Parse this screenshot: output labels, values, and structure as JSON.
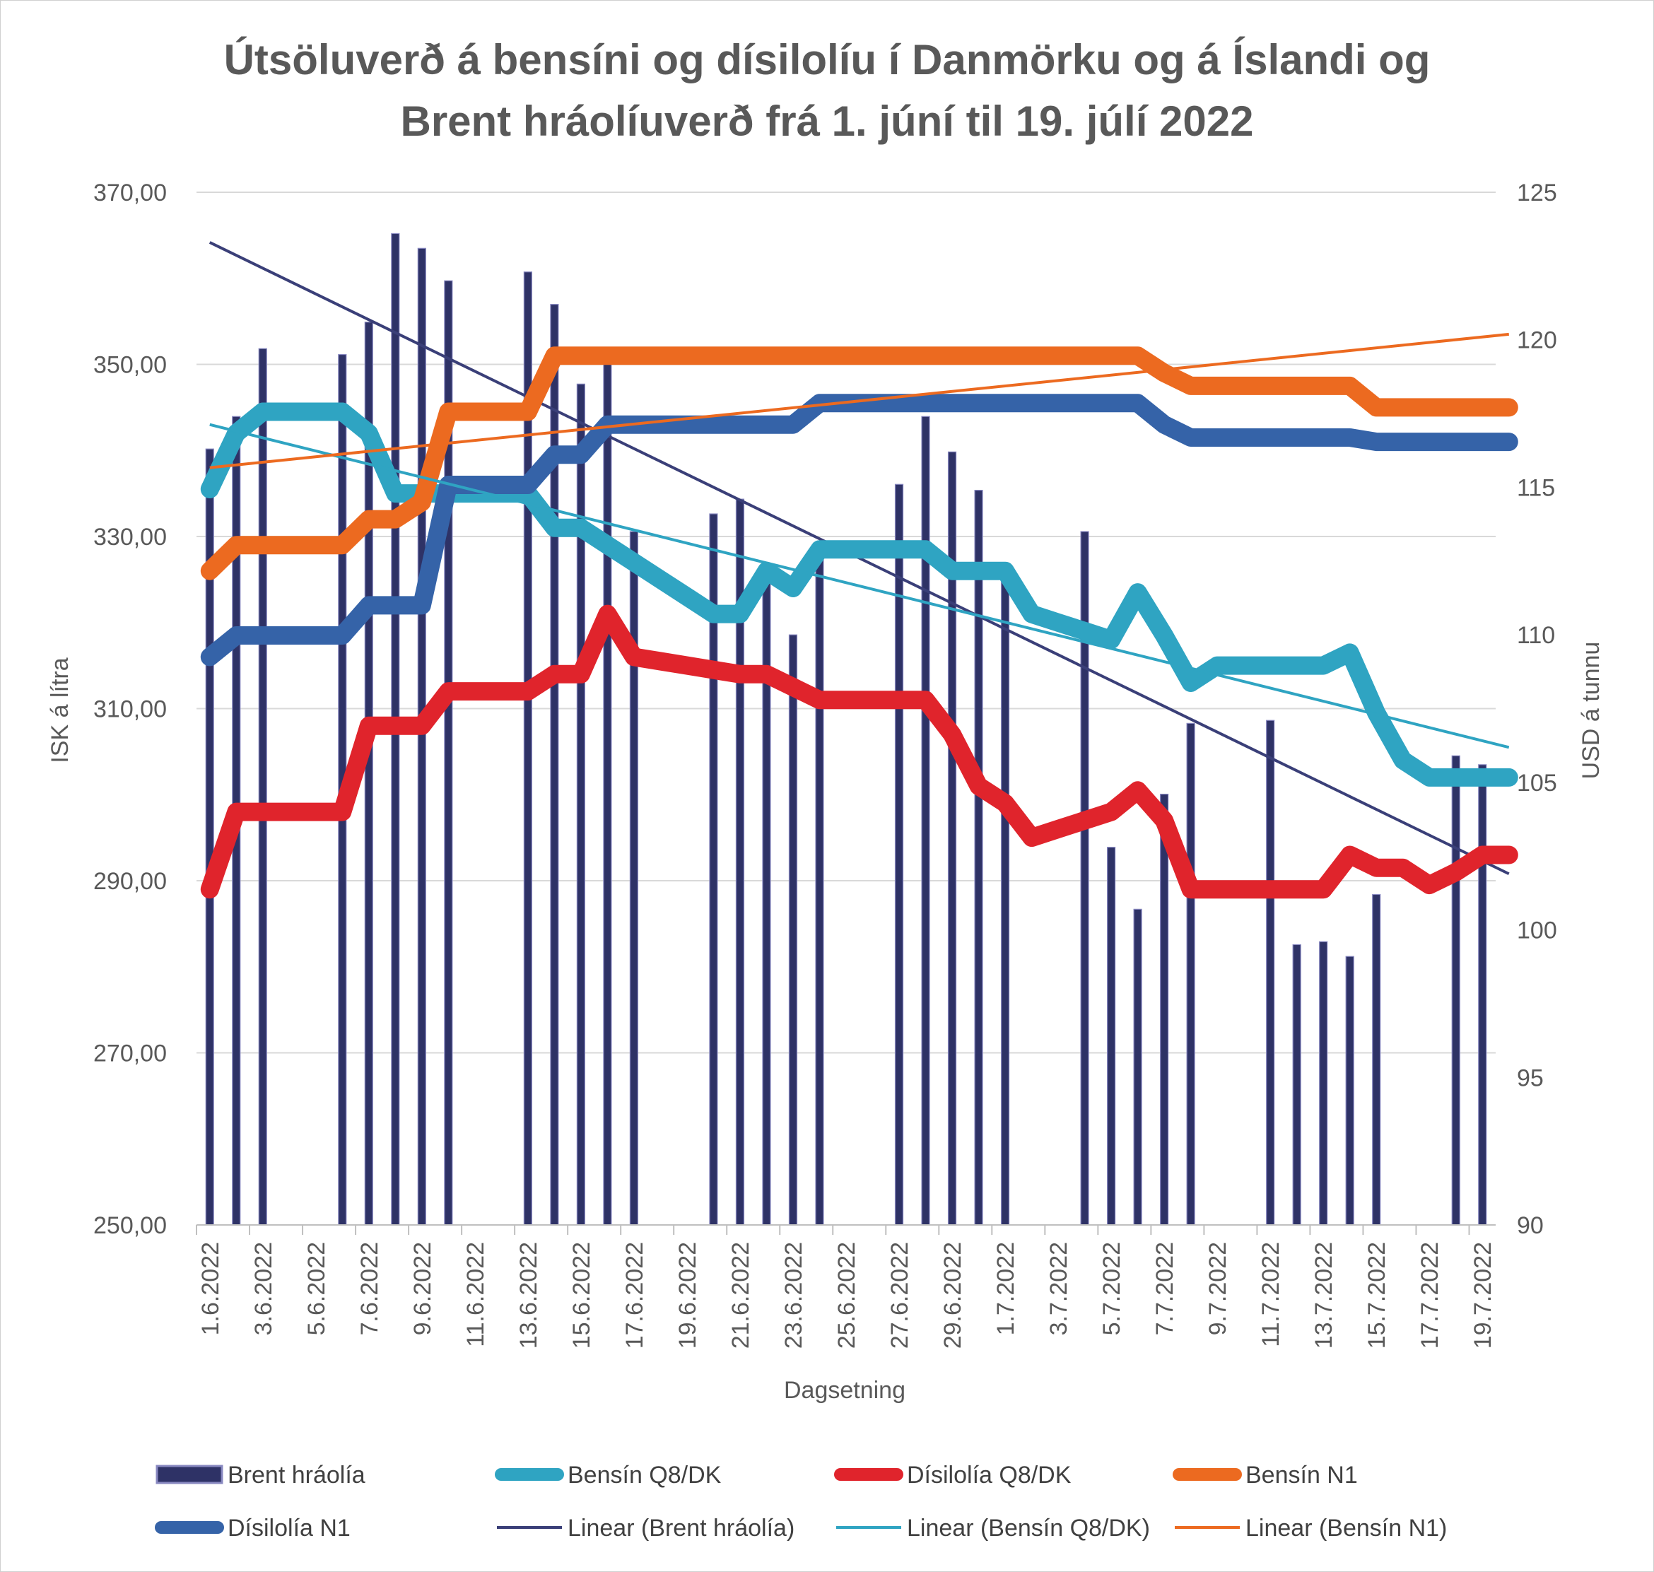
{
  "chart_data": {
    "type": "bar+line",
    "title": [
      "Útsöluverð á bensíni og dísilolíu í Danmörku og á Íslandi og",
      "Brent hráolíuverð frá 1. júní til 19. júlí 2022"
    ],
    "xlabel": "Dagsetning",
    "ylabel_left": "ISK á lítra",
    "ylabel_right": "USD á tunnu",
    "ylim_left": [
      250,
      370
    ],
    "ylim_right": [
      90,
      125
    ],
    "yticks_left": [
      "250,00",
      "270,00",
      "290,00",
      "310,00",
      "330,00",
      "350,00",
      "370,00"
    ],
    "yticks_right": [
      "90",
      "95",
      "100",
      "105",
      "110",
      "115",
      "120",
      "125"
    ],
    "grid": true,
    "legend_position": "bottom",
    "x_start": "2022-06-01",
    "days": 49,
    "xtick_labels": [
      "1.6.2022",
      "3.6.2022",
      "5.6.2022",
      "7.6.2022",
      "9.6.2022",
      "11.6.2022",
      "13.6.2022",
      "15.6.2022",
      "17.6.2022",
      "19.6.2022",
      "21.6.2022",
      "23.6.2022",
      "25.6.2022",
      "27.6.2022",
      "29.6.2022",
      "1.7.2022",
      "3.7.2022",
      "5.7.2022",
      "7.7.2022",
      "9.7.2022",
      "11.7.2022",
      "13.7.2022",
      "15.7.2022",
      "17.7.2022",
      "19.7.2022"
    ],
    "brent": {
      "name": "Brent hráolía",
      "color": "#2e3266",
      "days": [
        0,
        1,
        2,
        5,
        6,
        7,
        8,
        9,
        12,
        13,
        14,
        15,
        16,
        19,
        20,
        21,
        22,
        23,
        26,
        27,
        28,
        29,
        30,
        33,
        34,
        35,
        36,
        37,
        40,
        41,
        42,
        43,
        44,
        47,
        48
      ],
      "values": [
        116.3,
        117.4,
        119.7,
        119.5,
        120.6,
        123.6,
        123.1,
        122.0,
        122.3,
        121.2,
        118.5,
        119.4,
        113.5,
        114.1,
        114.6,
        112.0,
        110.0,
        113.0,
        115.1,
        117.4,
        116.2,
        114.9,
        112.3,
        113.5,
        102.8,
        100.7,
        104.6,
        107.0,
        107.1,
        99.5,
        99.6,
        99.1,
        101.2,
        105.9,
        105.6
      ]
    },
    "series": [
      {
        "name": "Bensín Q8/DK",
        "color": "#2fa4c2",
        "width": 26,
        "points": [
          [
            0,
            335.5
          ],
          [
            1,
            342
          ],
          [
            2,
            344.5
          ],
          [
            3,
            344.5
          ],
          [
            4,
            344.5
          ],
          [
            5,
            344.5
          ],
          [
            6,
            342
          ],
          [
            7,
            335
          ],
          [
            8,
            335
          ],
          [
            9,
            335
          ],
          [
            10,
            335
          ],
          [
            11,
            335
          ],
          [
            12,
            335
          ],
          [
            13,
            331
          ],
          [
            14,
            331
          ],
          [
            15,
            329
          ],
          [
            16,
            327
          ],
          [
            17,
            325
          ],
          [
            18,
            323
          ],
          [
            19,
            321
          ],
          [
            20,
            321
          ],
          [
            21,
            326
          ],
          [
            22,
            324
          ],
          [
            23,
            328.5
          ],
          [
            24,
            328.5
          ],
          [
            25,
            328.5
          ],
          [
            26,
            328.5
          ],
          [
            27,
            328.5
          ],
          [
            28,
            326
          ],
          [
            29,
            326
          ],
          [
            30,
            326
          ],
          [
            31,
            321
          ],
          [
            32,
            320
          ],
          [
            33,
            319
          ],
          [
            34,
            318
          ],
          [
            35,
            323.5
          ],
          [
            36,
            318.5
          ],
          [
            37,
            313
          ],
          [
            38,
            315
          ],
          [
            39,
            315
          ],
          [
            40,
            315
          ],
          [
            41,
            315
          ],
          [
            42,
            315
          ],
          [
            43,
            316.5
          ],
          [
            44,
            309.5
          ],
          [
            45,
            304
          ],
          [
            46,
            302
          ],
          [
            47,
            302
          ],
          [
            48,
            302
          ],
          [
            49,
            302
          ]
        ]
      },
      {
        "name": "Dísilolía Q8/DK",
        "color": "#e0242c",
        "width": 26,
        "points": [
          [
            0,
            289
          ],
          [
            1,
            298
          ],
          [
            2,
            298
          ],
          [
            3,
            298
          ],
          [
            4,
            298
          ],
          [
            5,
            298
          ],
          [
            6,
            308
          ],
          [
            7,
            308
          ],
          [
            8,
            308
          ],
          [
            9,
            312
          ],
          [
            10,
            312
          ],
          [
            11,
            312
          ],
          [
            12,
            312
          ],
          [
            13,
            314
          ],
          [
            14,
            314
          ],
          [
            15,
            321
          ],
          [
            16,
            316
          ],
          [
            17,
            315.5
          ],
          [
            18,
            315
          ],
          [
            19,
            314.5
          ],
          [
            20,
            314
          ],
          [
            21,
            314
          ],
          [
            22,
            312.5
          ],
          [
            23,
            311
          ],
          [
            24,
            311
          ],
          [
            25,
            311
          ],
          [
            26,
            311
          ],
          [
            27,
            311
          ],
          [
            28,
            307
          ],
          [
            29,
            301
          ],
          [
            30,
            299
          ],
          [
            31,
            295
          ],
          [
            32,
            296
          ],
          [
            33,
            297
          ],
          [
            34,
            298
          ],
          [
            35,
            300.5
          ],
          [
            36,
            297
          ],
          [
            37,
            289
          ],
          [
            38,
            289
          ],
          [
            39,
            289
          ],
          [
            40,
            289
          ],
          [
            41,
            289
          ],
          [
            42,
            289
          ],
          [
            43,
            293
          ],
          [
            44,
            291.5
          ],
          [
            45,
            291.5
          ],
          [
            46,
            289.5
          ],
          [
            47,
            291
          ],
          [
            48,
            293
          ],
          [
            49,
            293
          ]
        ]
      },
      {
        "name": "Bensín N1",
        "color": "#ec6a20",
        "width": 26,
        "points": [
          [
            0,
            326
          ],
          [
            1,
            329
          ],
          [
            2,
            329
          ],
          [
            3,
            329
          ],
          [
            4,
            329
          ],
          [
            5,
            329
          ],
          [
            6,
            332
          ],
          [
            7,
            332
          ],
          [
            8,
            334
          ],
          [
            9,
            344.5
          ],
          [
            10,
            344.5
          ],
          [
            11,
            344.5
          ],
          [
            12,
            344.5
          ],
          [
            13,
            351
          ],
          [
            14,
            351
          ],
          [
            15,
            351
          ],
          [
            16,
            351
          ],
          [
            17,
            351
          ],
          [
            18,
            351
          ],
          [
            19,
            351
          ],
          [
            20,
            351
          ],
          [
            21,
            351
          ],
          [
            22,
            351
          ],
          [
            23,
            351
          ],
          [
            24,
            351
          ],
          [
            25,
            351
          ],
          [
            26,
            351
          ],
          [
            27,
            351
          ],
          [
            28,
            351
          ],
          [
            29,
            351
          ],
          [
            30,
            351
          ],
          [
            31,
            351
          ],
          [
            32,
            351
          ],
          [
            33,
            351
          ],
          [
            34,
            351
          ],
          [
            35,
            351
          ],
          [
            36,
            349
          ],
          [
            37,
            347.5
          ],
          [
            38,
            347.5
          ],
          [
            39,
            347.5
          ],
          [
            40,
            347.5
          ],
          [
            41,
            347.5
          ],
          [
            42,
            347.5
          ],
          [
            43,
            347.5
          ],
          [
            44,
            345
          ],
          [
            45,
            345
          ],
          [
            46,
            345
          ],
          [
            47,
            345
          ],
          [
            48,
            345
          ],
          [
            49,
            345
          ]
        ]
      },
      {
        "name": "Dísilolía N1",
        "color": "#3563a8",
        "width": 26,
        "points": [
          [
            0,
            316
          ],
          [
            1,
            318.5
          ],
          [
            2,
            318.5
          ],
          [
            3,
            318.5
          ],
          [
            4,
            318.5
          ],
          [
            5,
            318.5
          ],
          [
            6,
            322
          ],
          [
            7,
            322
          ],
          [
            8,
            322
          ],
          [
            9,
            336
          ],
          [
            10,
            336
          ],
          [
            11,
            336
          ],
          [
            12,
            336
          ],
          [
            13,
            339.5
          ],
          [
            14,
            339.5
          ],
          [
            15,
            343
          ],
          [
            16,
            343
          ],
          [
            17,
            343
          ],
          [
            18,
            343
          ],
          [
            19,
            343
          ],
          [
            20,
            343
          ],
          [
            21,
            343
          ],
          [
            22,
            343
          ],
          [
            23,
            345.5
          ],
          [
            24,
            345.5
          ],
          [
            25,
            345.5
          ],
          [
            26,
            345.5
          ],
          [
            27,
            345.5
          ],
          [
            28,
            345.5
          ],
          [
            29,
            345.5
          ],
          [
            30,
            345.5
          ],
          [
            31,
            345.5
          ],
          [
            32,
            345.5
          ],
          [
            33,
            345.5
          ],
          [
            34,
            345.5
          ],
          [
            35,
            345.5
          ],
          [
            36,
            343
          ],
          [
            37,
            341.5
          ],
          [
            38,
            341.5
          ],
          [
            39,
            341.5
          ],
          [
            40,
            341.5
          ],
          [
            41,
            341.5
          ],
          [
            42,
            341.5
          ],
          [
            43,
            341.5
          ],
          [
            44,
            341
          ],
          [
            45,
            341
          ],
          [
            46,
            341
          ],
          [
            47,
            341
          ],
          [
            48,
            341
          ],
          [
            49,
            341
          ]
        ]
      }
    ],
    "trendlines": [
      {
        "name": "Linear (Brent hráolía)",
        "color": "#3a3f78",
        "axis": "right",
        "from": [
          0,
          123.3
        ],
        "to": [
          49,
          101.9
        ]
      },
      {
        "name": "Linear (Bensín Q8/DK)",
        "color": "#2fa4c2",
        "axis": "left",
        "from": [
          0,
          343
        ],
        "to": [
          49,
          305.5
        ]
      },
      {
        "name": "Linear (Bensín N1)",
        "color": "#ec6a20",
        "axis": "left",
        "from": [
          0,
          338
        ],
        "to": [
          49,
          353.5
        ]
      }
    ],
    "legend": [
      {
        "label": "Brent hráolía",
        "kind": "bar",
        "color": "#2e3266"
      },
      {
        "label": "Bensín Q8/DK",
        "kind": "thick",
        "color": "#2fa4c2"
      },
      {
        "label": "Dísilolía Q8/DK",
        "kind": "thick",
        "color": "#e0242c"
      },
      {
        "label": "Bensín N1",
        "kind": "thick",
        "color": "#ec6a20"
      },
      {
        "label": "Dísilolía N1",
        "kind": "thick",
        "color": "#3563a8"
      },
      {
        "label": "Linear (Brent hráolía)",
        "kind": "thin",
        "color": "#3a3f78"
      },
      {
        "label": "Linear (Bensín Q8/DK)",
        "kind": "thin",
        "color": "#2fa4c2"
      },
      {
        "label": "Linear (Bensín N1)",
        "kind": "thin",
        "color": "#ec6a20"
      }
    ]
  }
}
